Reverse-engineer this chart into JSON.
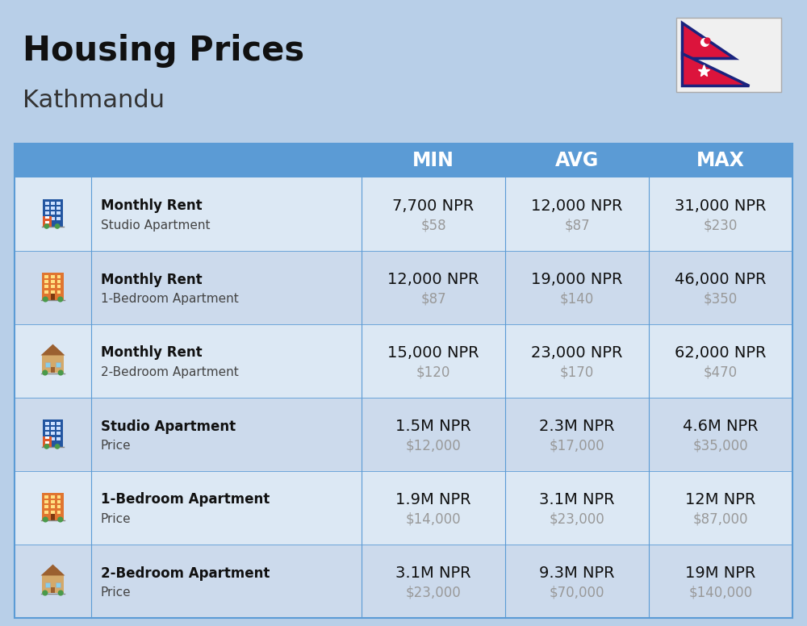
{
  "title": "Housing Prices",
  "subtitle": "Kathmandu",
  "bg_color": "#b8cfe8",
  "header_bg": "#5b9bd5",
  "row_bg_even": "#dce8f4",
  "row_bg_odd": "#ccdaec",
  "header_labels": [
    "MIN",
    "AVG",
    "MAX"
  ],
  "rows": [
    {
      "bold_label": "Monthly Rent",
      "sub_label": "Studio Apartment",
      "min_npr": "7,700 NPR",
      "min_usd": "$58",
      "avg_npr": "12,000 NPR",
      "avg_usd": "$87",
      "max_npr": "31,000 NPR",
      "max_usd": "$230",
      "icon_type": "studio_blue"
    },
    {
      "bold_label": "Monthly Rent",
      "sub_label": "1-Bedroom Apartment",
      "min_npr": "12,000 NPR",
      "min_usd": "$87",
      "avg_npr": "19,000 NPR",
      "avg_usd": "$140",
      "max_npr": "46,000 NPR",
      "max_usd": "$350",
      "icon_type": "one_bed_orange"
    },
    {
      "bold_label": "Monthly Rent",
      "sub_label": "2-Bedroom Apartment",
      "min_npr": "15,000 NPR",
      "min_usd": "$120",
      "avg_npr": "23,000 NPR",
      "avg_usd": "$170",
      "max_npr": "62,000 NPR",
      "max_usd": "$470",
      "icon_type": "two_bed_tan"
    },
    {
      "bold_label": "Studio Apartment",
      "sub_label": "Price",
      "min_npr": "1.5M NPR",
      "min_usd": "$12,000",
      "avg_npr": "2.3M NPR",
      "avg_usd": "$17,000",
      "max_npr": "4.6M NPR",
      "max_usd": "$35,000",
      "icon_type": "studio_blue"
    },
    {
      "bold_label": "1-Bedroom Apartment",
      "sub_label": "Price",
      "min_npr": "1.9M NPR",
      "min_usd": "$14,000",
      "avg_npr": "3.1M NPR",
      "avg_usd": "$23,000",
      "max_npr": "12M NPR",
      "max_usd": "$87,000",
      "icon_type": "one_bed_orange"
    },
    {
      "bold_label": "2-Bedroom Apartment",
      "sub_label": "Price",
      "min_npr": "3.1M NPR",
      "min_usd": "$23,000",
      "avg_npr": "9.3M NPR",
      "avg_usd": "$70,000",
      "max_npr": "19M NPR",
      "max_usd": "$140,000",
      "icon_type": "two_bed_tan"
    }
  ]
}
